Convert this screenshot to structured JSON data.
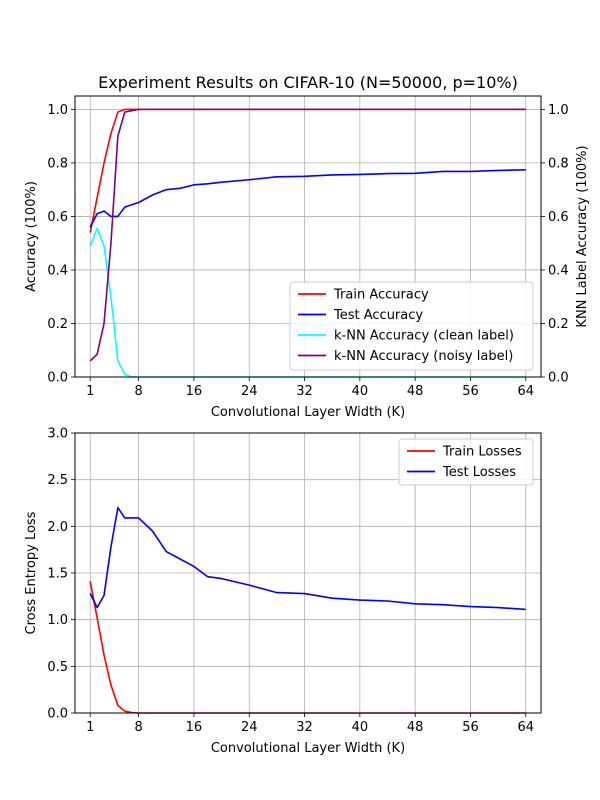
{
  "chart_data": [
    {
      "type": "line",
      "title": "Experiment Results on CIFAR-10 (N=50000, p=10%)",
      "xlabel": "Convolutional Layer Width (K)",
      "ylabel": "Accuracy (100%)",
      "ylabel_right": "KNN Label Accuracy (100%)",
      "xlim": [
        -1.2,
        66.2
      ],
      "ylim": [
        0,
        1.05
      ],
      "ylim_right": [
        0,
        1.05
      ],
      "xticks": [
        1,
        8,
        16,
        24,
        32,
        40,
        48,
        56,
        64
      ],
      "yticks": [
        "0.0",
        "0.2",
        "0.4",
        "0.6",
        "0.8",
        "1.0"
      ],
      "yticks_right": [
        "0.0",
        "0.2",
        "0.4",
        "0.6",
        "0.8",
        "1.0"
      ],
      "grid": true,
      "legend_position": "lower-right",
      "series": [
        {
          "name": "Train Accuracy",
          "color": "#ff0000",
          "x": [
            1,
            2,
            3,
            4,
            5,
            6,
            7,
            8,
            10,
            12,
            14,
            16,
            18,
            20,
            24,
            28,
            32,
            36,
            40,
            44,
            48,
            52,
            56,
            60,
            64
          ],
          "y": [
            0.54,
            0.67,
            0.8,
            0.91,
            0.99,
            1.0,
            1.0,
            1.0,
            1.0,
            1.0,
            1.0,
            1.0,
            1.0,
            1.0,
            1.0,
            1.0,
            1.0,
            1.0,
            1.0,
            1.0,
            1.0,
            1.0,
            1.0,
            1.0,
            1.0
          ]
        },
        {
          "name": "Test Accuracy",
          "color": "#0000ff",
          "x": [
            1,
            2,
            3,
            4,
            5,
            6,
            8,
            10,
            12,
            14,
            16,
            18,
            20,
            24,
            28,
            32,
            36,
            40,
            44,
            48,
            52,
            56,
            60,
            64
          ],
          "y": [
            0.56,
            0.61,
            0.62,
            0.6,
            0.6,
            0.635,
            0.652,
            0.68,
            0.7,
            0.705,
            0.718,
            0.722,
            0.728,
            0.737,
            0.748,
            0.75,
            0.755,
            0.757,
            0.76,
            0.761,
            0.768,
            0.768,
            0.772,
            0.774
          ]
        },
        {
          "name": "k-NN Accuracy (clean label)",
          "color": "#00ffff",
          "axis": "right",
          "x": [
            1,
            2,
            3,
            4,
            5,
            6,
            7,
            8,
            10,
            12,
            16,
            24,
            32,
            40,
            48,
            56,
            64
          ],
          "y": [
            0.49,
            0.555,
            0.49,
            0.3,
            0.06,
            0.01,
            0.0,
            0.0,
            0.0,
            0.0,
            0.0,
            0.0,
            0.0,
            0.0,
            0.0,
            0.0,
            0.0
          ]
        },
        {
          "name": "k-NN Accuracy (noisy label)",
          "color": "#800080",
          "axis": "right",
          "x": [
            1,
            2,
            3,
            4,
            5,
            6,
            7,
            8,
            10,
            12,
            16,
            24,
            32,
            40,
            48,
            56,
            64
          ],
          "y": [
            0.06,
            0.085,
            0.2,
            0.5,
            0.9,
            0.99,
            0.995,
            1.0,
            1.0,
            1.0,
            1.0,
            1.0,
            1.0,
            1.0,
            1.0,
            1.0,
            1.0
          ]
        }
      ]
    },
    {
      "type": "line",
      "title": "",
      "xlabel": "Convolutional Layer Width (K)",
      "ylabel": "Cross Entropy Loss",
      "xlim": [
        -1.2,
        66.2
      ],
      "ylim": [
        0,
        3.0
      ],
      "xticks": [
        1,
        8,
        16,
        24,
        32,
        40,
        48,
        56,
        64
      ],
      "yticks": [
        "0.0",
        "0.5",
        "1.0",
        "1.5",
        "2.0",
        "2.5",
        "3.0"
      ],
      "grid": true,
      "legend_position": "upper-right",
      "series": [
        {
          "name": "Train Losses",
          "color": "#ff0000",
          "x": [
            1,
            2,
            3,
            4,
            5,
            6,
            7,
            8,
            10,
            12,
            16,
            24,
            32,
            40,
            48,
            56,
            64
          ],
          "y": [
            1.41,
            1.02,
            0.62,
            0.3,
            0.08,
            0.02,
            0.005,
            0.0,
            0.0,
            0.0,
            0.0,
            0.0,
            0.0,
            0.0,
            0.0,
            0.0,
            0.0
          ]
        },
        {
          "name": "Test Losses",
          "color": "#0000ff",
          "x": [
            1,
            2,
            3,
            4,
            5,
            6,
            8,
            10,
            12,
            14,
            16,
            18,
            20,
            24,
            28,
            32,
            36,
            40,
            44,
            48,
            52,
            56,
            60,
            64
          ],
          "y": [
            1.28,
            1.13,
            1.26,
            1.78,
            2.2,
            2.09,
            2.09,
            1.95,
            1.73,
            1.65,
            1.57,
            1.46,
            1.44,
            1.37,
            1.29,
            1.28,
            1.23,
            1.21,
            1.2,
            1.17,
            1.16,
            1.14,
            1.13,
            1.11
          ]
        }
      ]
    }
  ]
}
